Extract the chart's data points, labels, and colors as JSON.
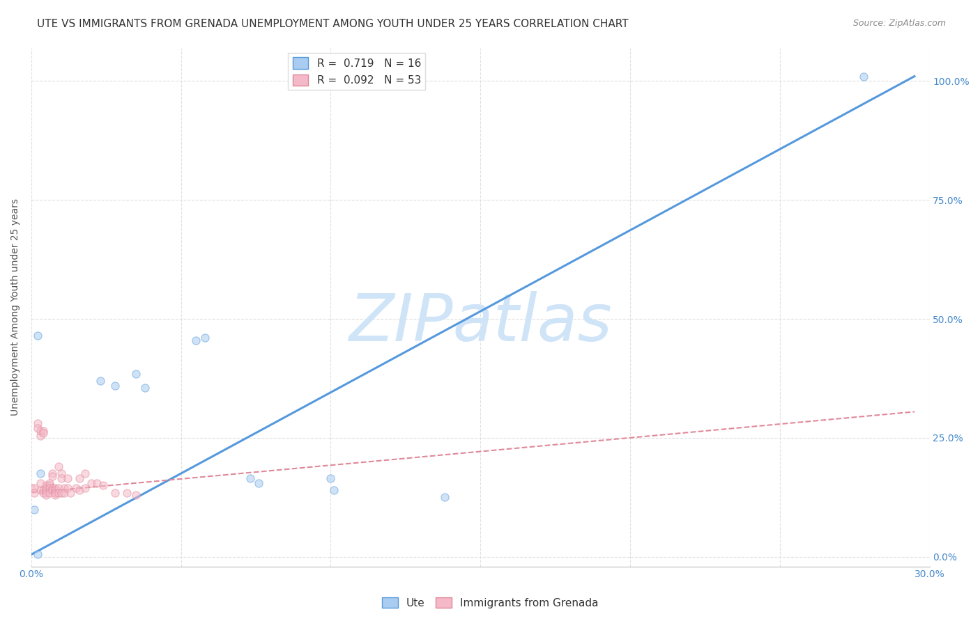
{
  "title": "UTE VS IMMIGRANTS FROM GRENADA UNEMPLOYMENT AMONG YOUTH UNDER 25 YEARS CORRELATION CHART",
  "source": "Source: ZipAtlas.com",
  "ylabel": "Unemployment Among Youth under 25 years",
  "xlabel": "",
  "xlim": [
    0.0,
    0.3
  ],
  "ylim": [
    -0.02,
    1.07
  ],
  "xticks": [
    0.0,
    0.05,
    0.1,
    0.15,
    0.2,
    0.25,
    0.3
  ],
  "xtick_labels": [
    "0.0%",
    "",
    "",
    "",
    "",
    "",
    "30.0%"
  ],
  "ytick_vals_right": [
    0.0,
    0.25,
    0.5,
    0.75,
    1.0
  ],
  "ytick_labels_right": [
    "0.0%",
    "25.0%",
    "50.0%",
    "75.0%",
    "100.0%"
  ],
  "blue_color": "#aaccf0",
  "pink_color": "#f5b8c8",
  "blue_line_color": "#5599dd",
  "pink_line_color": "#e08898",
  "legend_R_blue": "0.719",
  "legend_N_blue": "16",
  "legend_R_pink": "0.092",
  "legend_N_pink": "53",
  "watermark": "ZIPatlas",
  "watermark_color": "#d0e4f8",
  "blue_scatter_x": [
    0.002,
    0.001,
    0.002,
    0.003,
    0.023,
    0.028,
    0.035,
    0.038,
    0.055,
    0.058,
    0.073,
    0.076,
    0.1,
    0.101,
    0.138,
    0.278
  ],
  "blue_scatter_y": [
    0.005,
    0.1,
    0.465,
    0.175,
    0.37,
    0.36,
    0.385,
    0.355,
    0.455,
    0.46,
    0.165,
    0.155,
    0.165,
    0.14,
    0.125,
    1.01
  ],
  "pink_scatter_x": [
    0.0,
    0.001,
    0.001,
    0.002,
    0.002,
    0.003,
    0.003,
    0.003,
    0.003,
    0.004,
    0.004,
    0.004,
    0.004,
    0.005,
    0.005,
    0.005,
    0.005,
    0.005,
    0.006,
    0.006,
    0.006,
    0.006,
    0.007,
    0.007,
    0.007,
    0.007,
    0.008,
    0.008,
    0.008,
    0.008,
    0.008,
    0.009,
    0.009,
    0.009,
    0.01,
    0.01,
    0.01,
    0.011,
    0.011,
    0.012,
    0.012,
    0.013,
    0.015,
    0.016,
    0.016,
    0.018,
    0.018,
    0.02,
    0.022,
    0.024,
    0.028,
    0.032,
    0.035
  ],
  "pink_scatter_y": [
    0.145,
    0.145,
    0.135,
    0.28,
    0.27,
    0.255,
    0.265,
    0.155,
    0.14,
    0.265,
    0.26,
    0.14,
    0.135,
    0.15,
    0.145,
    0.14,
    0.135,
    0.13,
    0.155,
    0.15,
    0.145,
    0.135,
    0.175,
    0.17,
    0.145,
    0.14,
    0.145,
    0.14,
    0.135,
    0.135,
    0.13,
    0.19,
    0.145,
    0.135,
    0.175,
    0.165,
    0.135,
    0.145,
    0.135,
    0.165,
    0.145,
    0.135,
    0.145,
    0.165,
    0.14,
    0.175,
    0.145,
    0.155,
    0.155,
    0.15,
    0.135,
    0.135,
    0.13
  ],
  "blue_trend_x": [
    0.0,
    0.295
  ],
  "blue_trend_y": [
    0.005,
    1.01
  ],
  "pink_trend_x": [
    0.0,
    0.295
  ],
  "pink_trend_y": [
    0.135,
    0.305
  ],
  "grid_color": "#e0e0e0",
  "grid_linestyle": "--",
  "background_color": "#ffffff",
  "title_fontsize": 11,
  "axis_label_fontsize": 10,
  "tick_fontsize": 10,
  "legend_fontsize": 11,
  "scatter_size": 65,
  "scatter_alpha": 0.55,
  "scatter_linewidth": 0.8
}
